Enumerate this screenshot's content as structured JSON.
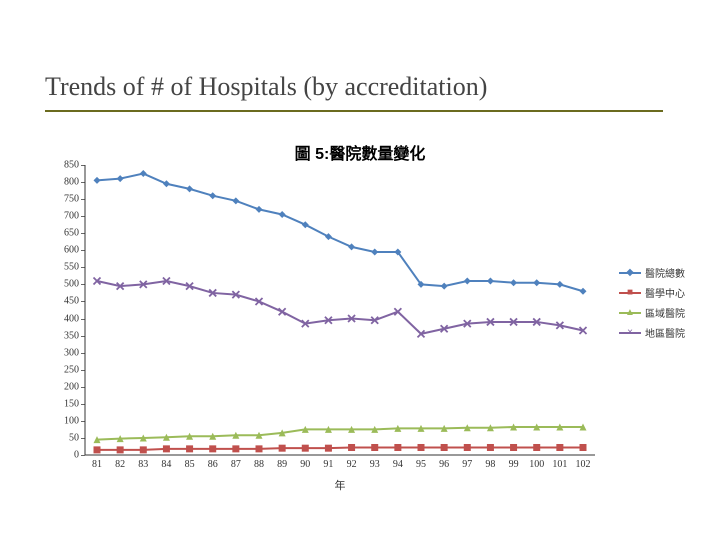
{
  "slide": {
    "title": "Trends of # of Hospitals (by accreditation)"
  },
  "chart": {
    "type": "line",
    "title": "圖 5:醫院數量變化",
    "x_axis_label": "年",
    "title_fontsize": 16,
    "label_fontsize": 11,
    "tick_fontsize": 10,
    "background_color": "#ffffff",
    "axis_color": "#333333",
    "line_width": 2,
    "marker_size": 7,
    "ylim": [
      0,
      850
    ],
    "ytick_step": 50,
    "y_ticks": [
      0,
      50,
      100,
      150,
      200,
      250,
      300,
      350,
      400,
      450,
      500,
      550,
      600,
      650,
      700,
      750,
      800,
      850
    ],
    "x_categories": [
      "81",
      "82",
      "83",
      "84",
      "85",
      "86",
      "87",
      "88",
      "89",
      "90",
      "91",
      "92",
      "93",
      "94",
      "95",
      "96",
      "97",
      "98",
      "99",
      "100",
      "101",
      "102"
    ],
    "series": [
      {
        "name": "醫院總數",
        "color": "#4f81bd",
        "marker": "diamond",
        "values": [
          805,
          810,
          825,
          795,
          780,
          760,
          745,
          720,
          705,
          675,
          640,
          610,
          595,
          595,
          500,
          495,
          510,
          510,
          505,
          505,
          500,
          480
        ]
      },
      {
        "name": "醫學中心",
        "color": "#c0504d",
        "marker": "square",
        "values": [
          15,
          15,
          15,
          18,
          18,
          18,
          18,
          18,
          20,
          20,
          20,
          22,
          22,
          22,
          22,
          22,
          22,
          22,
          22,
          22,
          22,
          22
        ]
      },
      {
        "name": "區域醫院",
        "color": "#9bbb59",
        "marker": "triangle",
        "values": [
          45,
          48,
          50,
          52,
          55,
          55,
          58,
          58,
          65,
          75,
          75,
          75,
          75,
          78,
          78,
          78,
          80,
          80,
          82,
          82,
          82,
          82
        ]
      },
      {
        "name": "地區醫院",
        "color": "#8064a2",
        "marker": "x",
        "values": [
          510,
          495,
          500,
          510,
          495,
          475,
          470,
          450,
          420,
          385,
          395,
          400,
          395,
          420,
          355,
          370,
          385,
          390,
          390,
          390,
          380,
          365
        ]
      }
    ],
    "legend": {
      "position": "right"
    }
  }
}
